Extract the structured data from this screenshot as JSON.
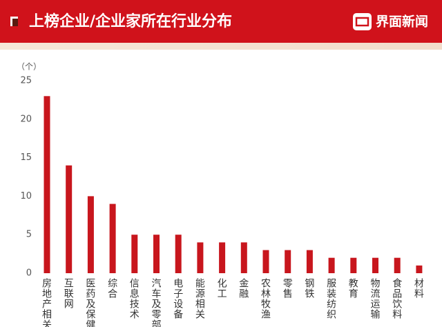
{
  "header": {
    "logo": "界面新闻"
  },
  "chart_data": {
    "type": "bar",
    "title": "上榜企业/企业家所在行业分布",
    "y_label": "（个）",
    "categories": [
      "房地产相关",
      "互联网",
      "医药及保健",
      "综合",
      "信息技术",
      "汽车及零部件",
      "电子设备",
      "能源相关",
      "化工",
      "金融",
      "农林牧渔",
      "零售",
      "钢铁",
      "服装纺织",
      "教育",
      "物流运输",
      "食品饮料",
      "材料"
    ],
    "values": [
      23,
      14,
      10,
      9,
      5,
      5,
      5,
      4,
      4,
      4,
      3,
      3,
      3,
      2,
      2,
      2,
      2,
      1
    ],
    "color": "#c8161d",
    "ylim": [
      0,
      25
    ],
    "yticks": [
      0,
      5,
      10,
      15,
      20,
      25
    ],
    "grid": false
  }
}
